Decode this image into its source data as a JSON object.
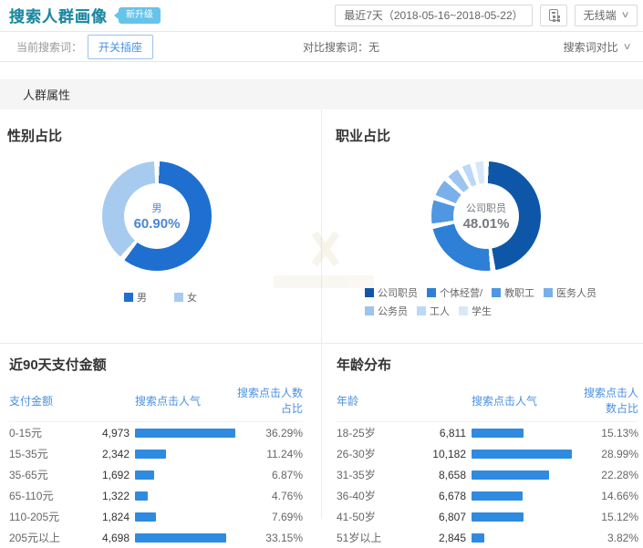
{
  "header": {
    "title": "搜索人群画像",
    "badge": "新升级",
    "date_range": "最近7天（2018-05-16~2018-05-22）",
    "terminal": "无线端",
    "chevron": "∨"
  },
  "toolbar": {
    "current_label": "当前搜索词：",
    "current_term": "开关插座",
    "compare_text": "对比搜索词：无",
    "compare_action": "搜索词对比"
  },
  "section": {
    "title": "人群属性"
  },
  "colors": {
    "accent": "#4a90e2",
    "bar": "#2f8be0",
    "title": "#1b87a0",
    "badge": "#5ac0e9",
    "band_bg": "#f5f5f5"
  },
  "chart_data": [
    {
      "type": "pie",
      "variant": "donut",
      "title": "性别占比",
      "center_label": "男",
      "center_value": "60.90%",
      "center_color": "#4a86d8",
      "segments": [
        {
          "label": "男",
          "value": 60.9,
          "color": "#1e6fd0"
        },
        {
          "label": "女",
          "value": 39.1,
          "color": "#a6cbef"
        }
      ],
      "legend_position": "bottom"
    },
    {
      "type": "pie",
      "variant": "donut",
      "title": "职业占比",
      "center_label": "公司职员",
      "center_value": "48.01%",
      "center_color": "#75797f",
      "segments": [
        {
          "label": "公司职员",
          "value": 48.01,
          "color": "#0e57a8"
        },
        {
          "label": "个体经营/",
          "value": 24.0,
          "color": "#2e7fd6",
          "estimated": true
        },
        {
          "label": "教职工",
          "value": 8.5,
          "color": "#4f97e0",
          "estimated": true
        },
        {
          "label": "医务人员",
          "value": 6.5,
          "color": "#7ab0e9",
          "estimated": true
        },
        {
          "label": "公务员",
          "value": 5.0,
          "color": "#9cc4f0",
          "estimated": true
        },
        {
          "label": "工人",
          "value": 4.0,
          "color": "#bcd8f6",
          "estimated": true
        },
        {
          "label": "学生",
          "value": 3.99,
          "color": "#d8e8fa",
          "estimated": true
        }
      ],
      "legend_position": "bottom"
    },
    {
      "type": "table",
      "title": "近90天支付金额",
      "columns": [
        "支付金额",
        "搜索点击人气",
        "搜索点击人数占比"
      ],
      "rows": [
        [
          "0-15元",
          "4,973",
          "36.29%"
        ],
        [
          "15-35元",
          "2,342",
          "11.24%"
        ],
        [
          "35-65元",
          "1,692",
          "6.87%"
        ],
        [
          "65-110元",
          "1,322",
          "4.76%"
        ],
        [
          "110-205元",
          "1,824",
          "7.69%"
        ],
        [
          "205元以上",
          "4,698",
          "33.15%"
        ]
      ],
      "bar_metric": "percent_of_max"
    },
    {
      "type": "table",
      "title": "年龄分布",
      "columns": [
        "年龄",
        "搜索点击人气",
        "搜索点击人数占比"
      ],
      "rows": [
        [
          "18-25岁",
          "6,811",
          "15.13%"
        ],
        [
          "26-30岁",
          "10,182",
          "28.99%"
        ],
        [
          "31-35岁",
          "8,658",
          "22.28%"
        ],
        [
          "36-40岁",
          "6,678",
          "14.66%"
        ],
        [
          "41-50岁",
          "6,807",
          "15.12%"
        ],
        [
          "51岁以上",
          "2,845",
          "3.82%"
        ]
      ],
      "bar_metric": "percent_of_max"
    }
  ]
}
